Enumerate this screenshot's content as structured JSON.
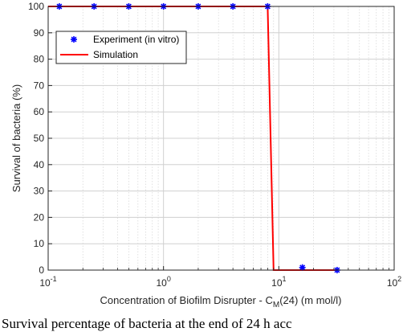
{
  "chart_data": {
    "type": "line",
    "xscale": "log",
    "xlim": [
      0.1,
      100
    ],
    "ylim": [
      0,
      100
    ],
    "grid": true,
    "minor_grid_x": true,
    "legend_position": "top-left",
    "xlabel_prefix": "Concentration of Biofilm Disrupter - C",
    "xlabel_sub": "M",
    "xlabel_suffix": "(24) (m mol/l)",
    "ylabel": "Survival of bacteria (%)",
    "x_ticks": [
      {
        "base": "10",
        "exp": "-1",
        "value": 0.1
      },
      {
        "base": "10",
        "exp": "0",
        "value": 1
      },
      {
        "base": "10",
        "exp": "1",
        "value": 10
      },
      {
        "base": "10",
        "exp": "2",
        "value": 100
      }
    ],
    "y_ticks": [
      "0",
      "10",
      "20",
      "30",
      "40",
      "50",
      "60",
      "70",
      "80",
      "90",
      "100"
    ],
    "series": [
      {
        "name": "Experiment (in vitro)",
        "kind": "marker",
        "color": "#0000ff",
        "x": [
          0.125,
          0.25,
          0.5,
          1,
          2,
          4,
          8,
          16,
          32
        ],
        "y": [
          100,
          100,
          100,
          100,
          100,
          100,
          100,
          1,
          0
        ]
      },
      {
        "name": "Simulation",
        "kind": "line",
        "color": "#ff0000",
        "x": [
          0.1,
          8,
          9,
          32
        ],
        "y": [
          100,
          100,
          0,
          0
        ]
      }
    ]
  },
  "caption": "Survival percentage of bacteria at the end of 24 h acc"
}
